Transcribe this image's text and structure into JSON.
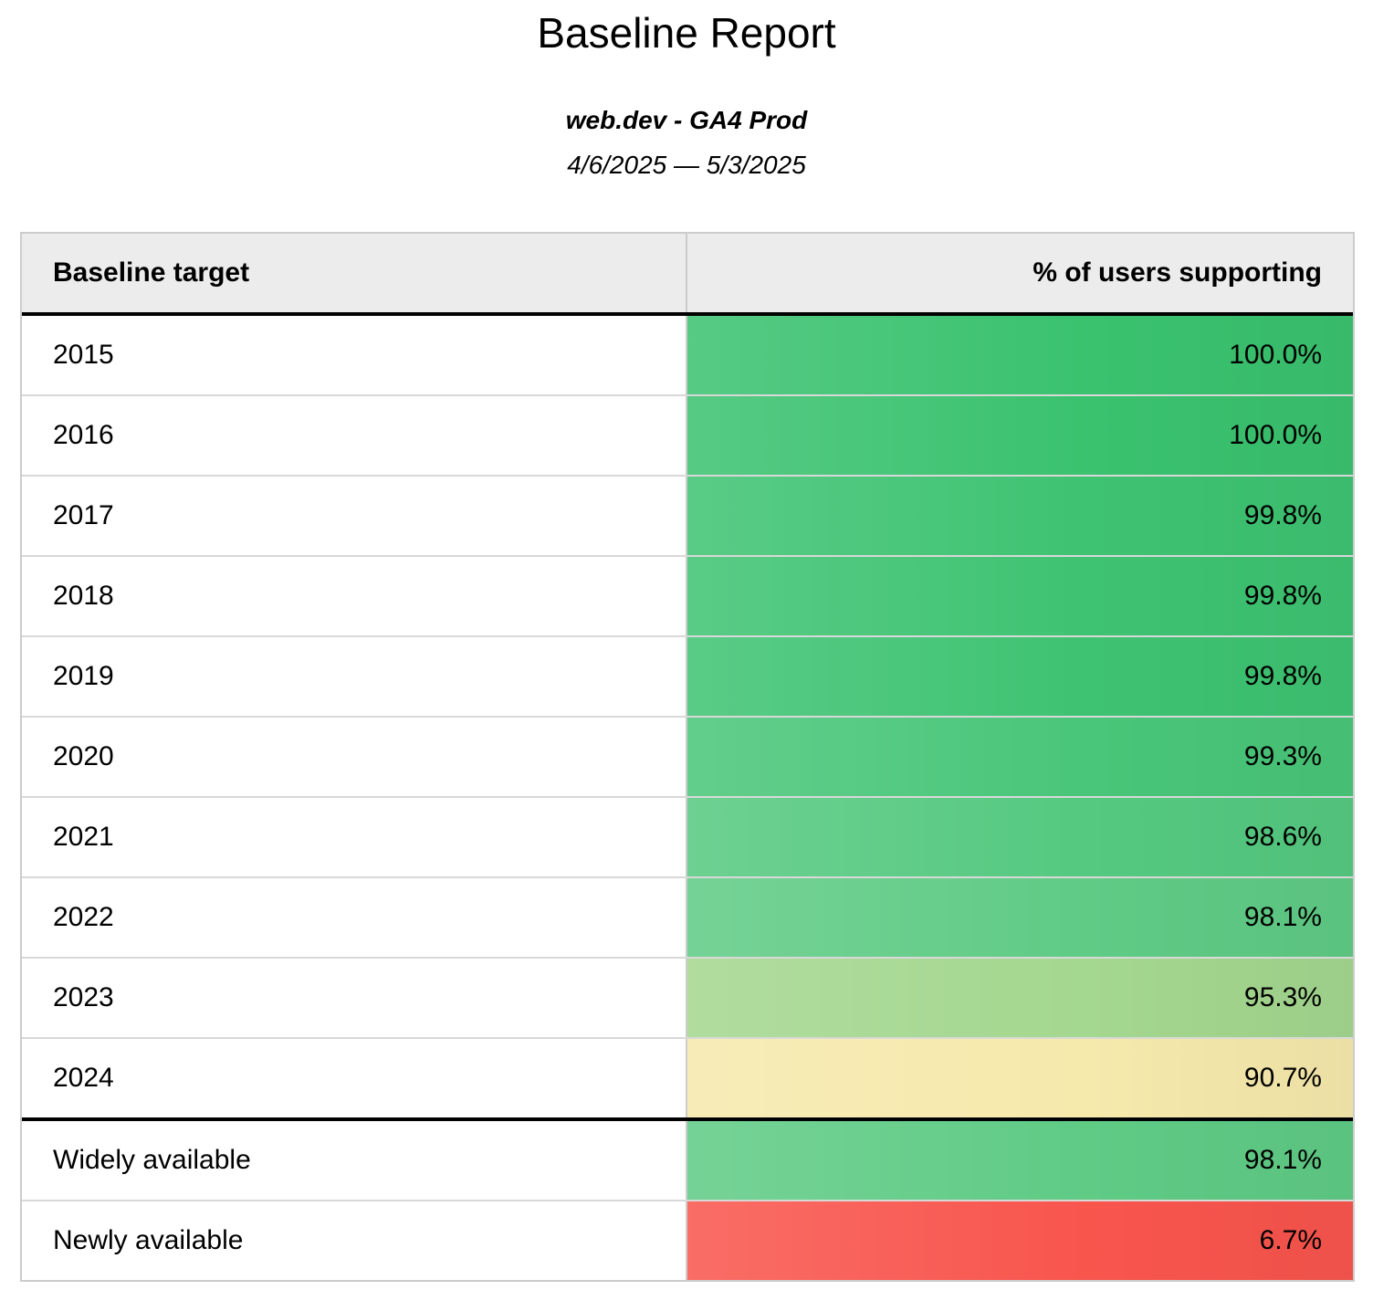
{
  "header": {
    "title": "Baseline Report",
    "subtitle": "web.dev - GA4 Prod",
    "date_range": "4/6/2025 — 5/3/2025"
  },
  "chart_data": {
    "type": "table",
    "title": "Baseline Report",
    "subtitle": "web.dev - GA4 Prod",
    "date_range": "4/6/2025 — 5/3/2025",
    "value_unit": "%",
    "color_scale": "red-yellow-green heatmap mapped to % of users supporting",
    "columns": {
      "target": "Baseline target",
      "support": "% of users supporting"
    },
    "rows": [
      {
        "label": "2015",
        "value": 100.0,
        "display": "100.0%",
        "color": "#3AC26F"
      },
      {
        "label": "2016",
        "value": 100.0,
        "display": "100.0%",
        "color": "#3AC26F"
      },
      {
        "label": "2017",
        "value": 99.8,
        "display": "99.8%",
        "color": "#3EC372"
      },
      {
        "label": "2018",
        "value": 99.8,
        "display": "99.8%",
        "color": "#3EC372"
      },
      {
        "label": "2019",
        "value": 99.8,
        "display": "99.8%",
        "color": "#3EC372"
      },
      {
        "label": "2020",
        "value": 99.3,
        "display": "99.3%",
        "color": "#49C679"
      },
      {
        "label": "2021",
        "value": 98.6,
        "display": "98.6%",
        "color": "#55C980"
      },
      {
        "label": "2022",
        "value": 98.1,
        "display": "98.1%",
        "color": "#5FCB85"
      },
      {
        "label": "2023",
        "value": 95.3,
        "display": "95.3%",
        "color": "#A4D78F"
      },
      {
        "label": "2024",
        "value": 90.7,
        "display": "90.7%",
        "color": "#F6E9AC"
      },
      {
        "label": "Widely available",
        "value": 98.1,
        "display": "98.1%",
        "color": "#5FCB85"
      },
      {
        "label": "Newly available",
        "value": 6.7,
        "display": "6.7%",
        "color": "#F8554D"
      }
    ],
    "layout": {
      "header_background": "#ECECEC",
      "grid_line_color": "#D8D8D8",
      "outer_border_color": "#CCCCCC",
      "section_divider_color": "#000000"
    }
  }
}
